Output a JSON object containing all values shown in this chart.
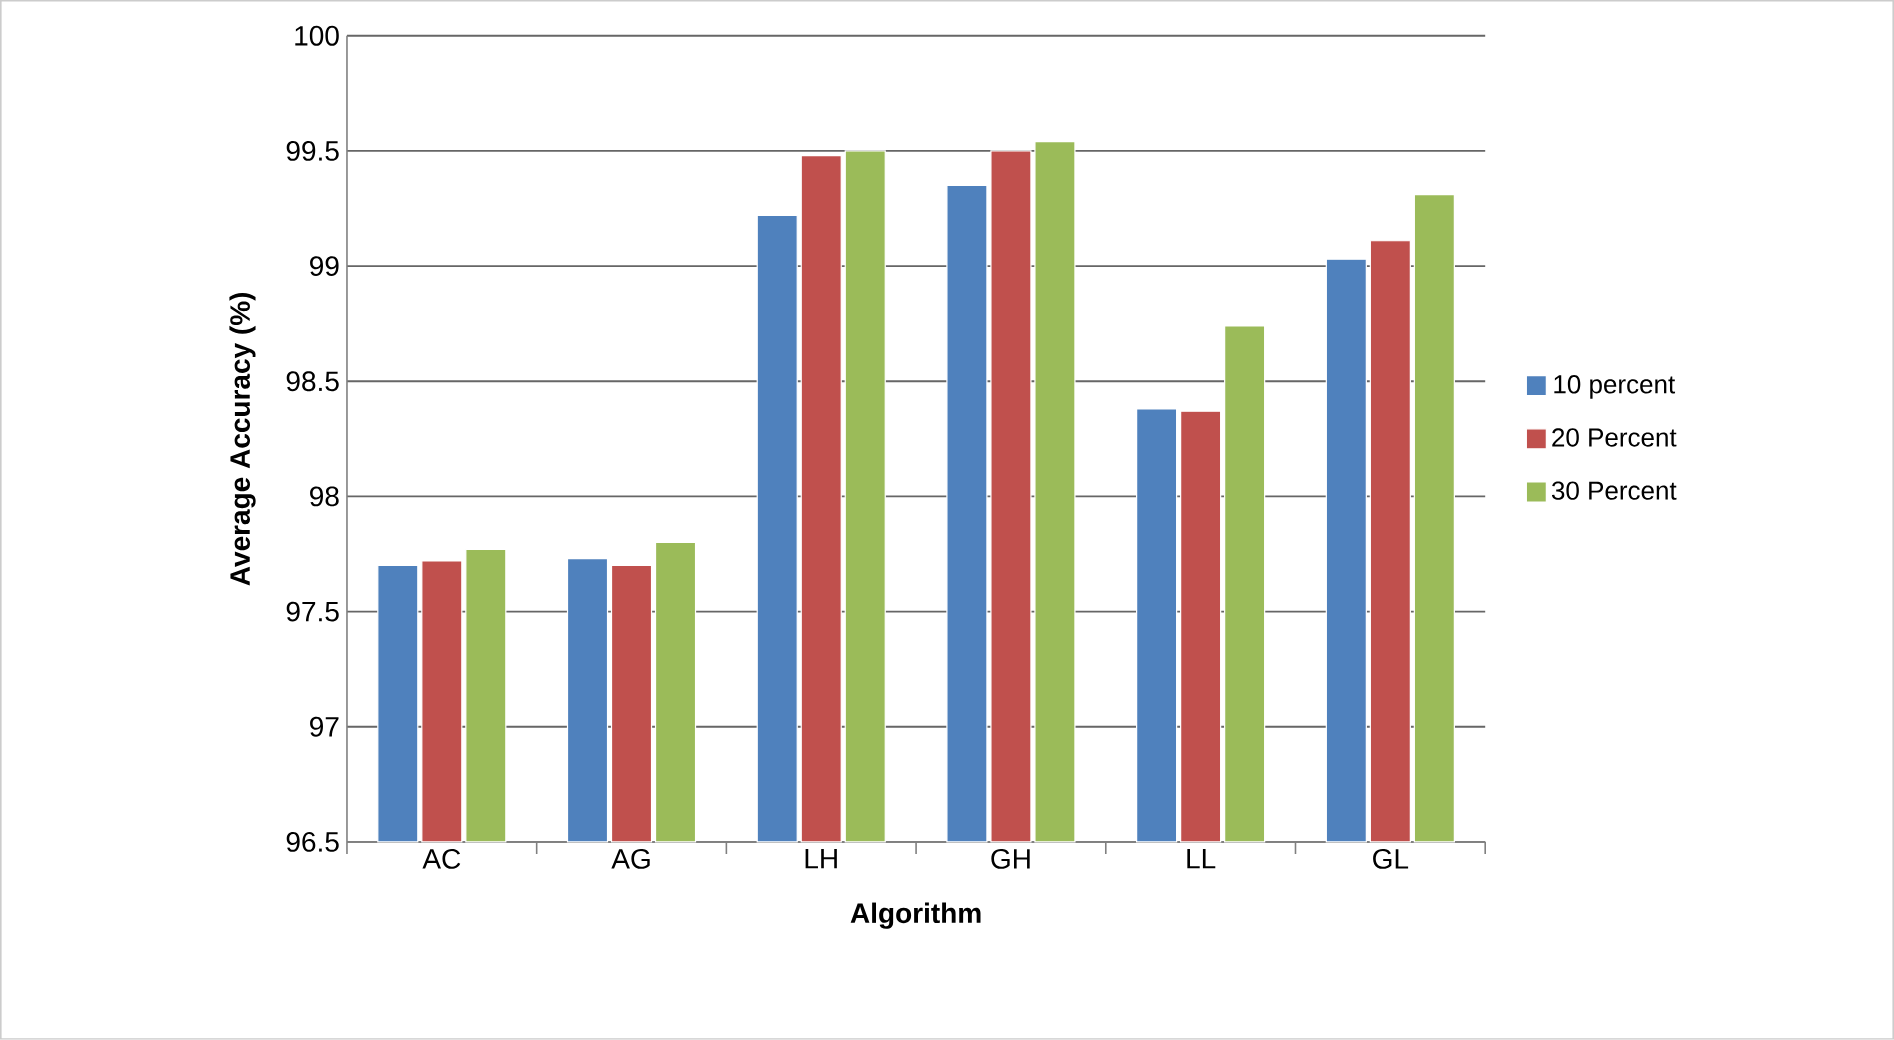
{
  "chart_data": {
    "type": "bar",
    "xlabel": "Algorithm",
    "ylabel": "Average Accuracy (%)",
    "categories": [
      "AC",
      "AG",
      "LH",
      "GH",
      "LL",
      "GL"
    ],
    "series": [
      {
        "name": "10 percent",
        "color": "#4f81bd",
        "values": [
          97.7,
          97.73,
          99.22,
          99.35,
          98.38,
          99.03
        ]
      },
      {
        "name": "20 Percent",
        "color": "#c0504d",
        "values": [
          97.72,
          97.7,
          99.48,
          99.5,
          98.37,
          99.11
        ]
      },
      {
        "name": "30 Percent",
        "color": "#9bbb59",
        "values": [
          97.77,
          97.8,
          99.5,
          99.54,
          98.74,
          99.31
        ]
      }
    ],
    "ylim": [
      96.5,
      100
    ],
    "yticks": [
      96.5,
      97,
      97.5,
      98,
      98.5,
      99,
      99.5,
      100
    ],
    "grid": "y",
    "legend": "right"
  }
}
